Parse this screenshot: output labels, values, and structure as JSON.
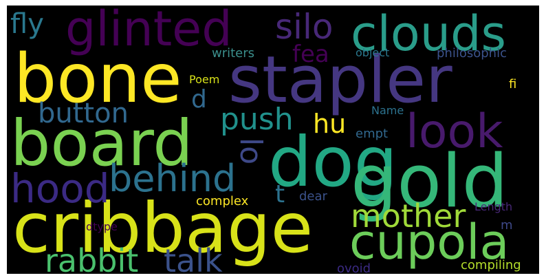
{
  "image": {
    "background": "#000000",
    "palette": "viridis"
  },
  "words": [
    {
      "text": "stapler",
      "color": "#453781"
    },
    {
      "text": "bone",
      "color": "#fde725"
    },
    {
      "text": "board",
      "color": "#7ad151"
    },
    {
      "text": "dog",
      "color": "#22a884"
    },
    {
      "text": "gold",
      "color": "#35b779"
    },
    {
      "text": "cribbage",
      "color": "#d8e219"
    },
    {
      "text": "clouds",
      "color": "#2a9d8a"
    },
    {
      "text": "glinted",
      "color": "#440154"
    },
    {
      "text": "silo",
      "color": "#482878"
    },
    {
      "text": "look",
      "color": "#481a6c"
    },
    {
      "text": "cupola",
      "color": "#6ccd5a"
    },
    {
      "text": "hood",
      "color": "#3b2a84"
    },
    {
      "text": "behind",
      "color": "#2c728e"
    },
    {
      "text": "mother",
      "color": "#a0da39"
    },
    {
      "text": "rabbit",
      "color": "#4ac16d"
    },
    {
      "text": "talk",
      "color": "#3b528b"
    },
    {
      "text": "button",
      "color": "#31688e"
    },
    {
      "text": "push",
      "color": "#21918c"
    },
    {
      "text": "fly",
      "color": "#2a788e"
    },
    {
      "text": "hu",
      "color": "#fde725"
    },
    {
      "text": "fea",
      "color": "#440154"
    },
    {
      "text": "lo",
      "color": "#3e4989"
    },
    {
      "text": "d",
      "color": "#31688e"
    },
    {
      "text": "t",
      "color": "#2c728e"
    },
    {
      "text": "writers",
      "color": "#3b8f8c"
    },
    {
      "text": "object",
      "color": "#2a788e"
    },
    {
      "text": "philosophic",
      "color": "#3b528b"
    },
    {
      "text": "Poem",
      "color": "#d8e219"
    },
    {
      "text": "fi",
      "color": "#fde725"
    },
    {
      "text": "Name",
      "color": "#2c728e"
    },
    {
      "text": "empt",
      "color": "#31688e"
    },
    {
      "text": "complex",
      "color": "#fde725"
    },
    {
      "text": "dear",
      "color": "#3b528b"
    },
    {
      "text": "Length",
      "color": "#482878"
    },
    {
      "text": "dtype",
      "color": "#440154"
    },
    {
      "text": "m",
      "color": "#3e4989"
    },
    {
      "text": "ovoid",
      "color": "#3b2a84"
    },
    {
      "text": "compiling",
      "color": "#b5de2b"
    }
  ]
}
